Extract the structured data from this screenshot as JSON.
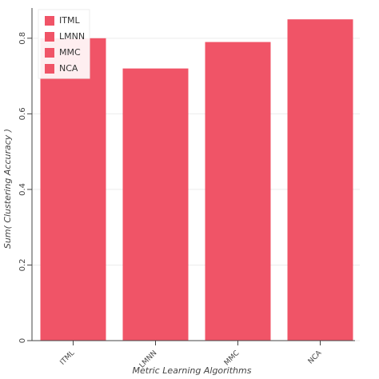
{
  "chart_data": {
    "type": "bar",
    "x_label": "Metric Learning Algorithms",
    "y_label": "Sum( Clustering Accuracy )",
    "categories": [
      "ITML",
      "LMNN",
      "MMC",
      "NCA"
    ],
    "values": [
      0.8,
      0.72,
      0.79,
      0.85
    ],
    "color": "#f05467",
    "ylim": [
      0,
      0.88
    ],
    "yticks": [
      0,
      0.2,
      0.4,
      0.6,
      0.8
    ],
    "grid": true,
    "legend": "top-left"
  }
}
